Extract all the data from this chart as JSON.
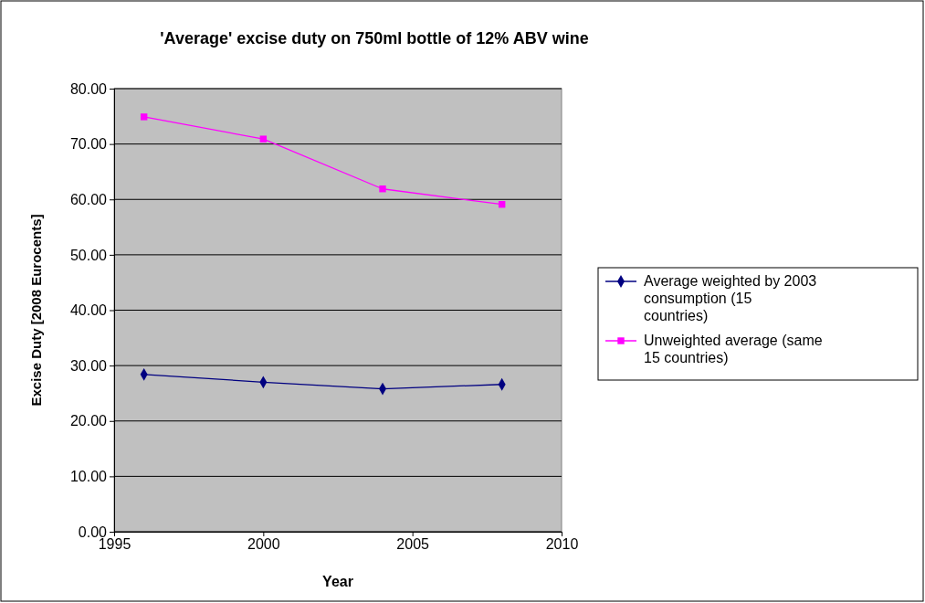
{
  "chart_data": {
    "type": "line",
    "title": "'Average' excise duty on 750ml bottle of 12% ABV wine",
    "xlabel": "Year",
    "ylabel": "Excise Duty [2008 Eurocents]",
    "x": [
      1996,
      2000,
      2004,
      2008
    ],
    "series": [
      {
        "name": "Average weighted by 2003 consumption (15 countries)",
        "color": "#000080",
        "marker": "diamond",
        "values": [
          28.4,
          27.0,
          25.8,
          26.6
        ]
      },
      {
        "name": "Unweighted average (same 15 countries)",
        "color": "#ff00ff",
        "marker": "square",
        "values": [
          74.9,
          70.9,
          61.9,
          59.1
        ]
      }
    ],
    "xlim": [
      1995,
      2010
    ],
    "xticks": [
      1995,
      2000,
      2005,
      2010
    ],
    "ylim": [
      0,
      80
    ],
    "yticks": [
      {
        "value": 0,
        "label": "0.00"
      },
      {
        "value": 10,
        "label": "10.00"
      },
      {
        "value": 20,
        "label": "20.00"
      },
      {
        "value": 30,
        "label": "30.00"
      },
      {
        "value": 40,
        "label": "40.00"
      },
      {
        "value": 50,
        "label": "50.00"
      },
      {
        "value": 60,
        "label": "60.00"
      },
      {
        "value": 70,
        "label": "70.00"
      },
      {
        "value": 80,
        "label": "80.00"
      }
    ],
    "grid": "y",
    "legend": "right",
    "line_style": "solid"
  }
}
